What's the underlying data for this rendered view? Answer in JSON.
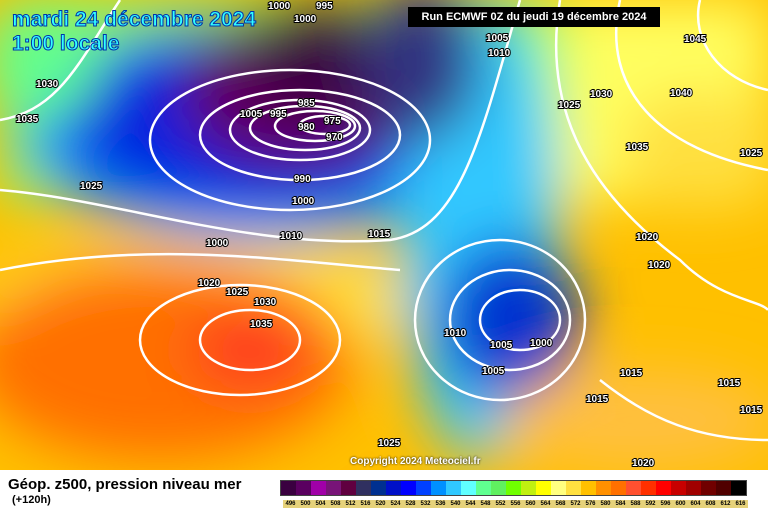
{
  "header": {
    "date": "mardi 24 décembre 2024",
    "time": "1:00 locale",
    "run": "Run ECMWF 0Z du jeudi 19 décembre 2024",
    "copyright": "Copyright 2024 Meteociel.fr"
  },
  "legend": {
    "title": "Géop. z500, pression niveau mer",
    "lead": "(+120h)",
    "ticks": [
      "496",
      "500",
      "504",
      "508",
      "512",
      "516",
      "520",
      "524",
      "528",
      "532",
      "536",
      "540",
      "544",
      "548",
      "552",
      "556",
      "560",
      "564",
      "568",
      "572",
      "576",
      "580",
      "584",
      "588",
      "592",
      "596",
      "600",
      "604",
      "608",
      "612",
      "616"
    ],
    "colors": [
      "#3a0040",
      "#5a0060",
      "#a000a8",
      "#781478",
      "#600040",
      "#303060",
      "#003090",
      "#0010c8",
      "#0000ff",
      "#0040ff",
      "#0090ff",
      "#30c8ff",
      "#60ffff",
      "#60ff90",
      "#60f060",
      "#70ff00",
      "#c0f010",
      "#ffff00",
      "#ffff80",
      "#ffe040",
      "#ffc000",
      "#ff9000",
      "#ff7000",
      "#ff5030",
      "#ff3000",
      "#ff0000",
      "#c80000",
      "#a00000",
      "#700000",
      "#500000",
      "#000000"
    ]
  },
  "isobars": [
    "1000",
    "995",
    "1000",
    "1005",
    "1010",
    "1045",
    "1030",
    "1035",
    "1025",
    "1030",
    "1040",
    "1025",
    "1035",
    "1020",
    "1020",
    "1015",
    "985",
    "1005",
    "995",
    "980",
    "975",
    "970",
    "990",
    "1000",
    "1000",
    "1010",
    "1015",
    "1020",
    "1025",
    "1030",
    "1035",
    "1010",
    "1005",
    "1000",
    "1005",
    "1015",
    "1015",
    "1025",
    "1020",
    "1025",
    "1015"
  ]
}
